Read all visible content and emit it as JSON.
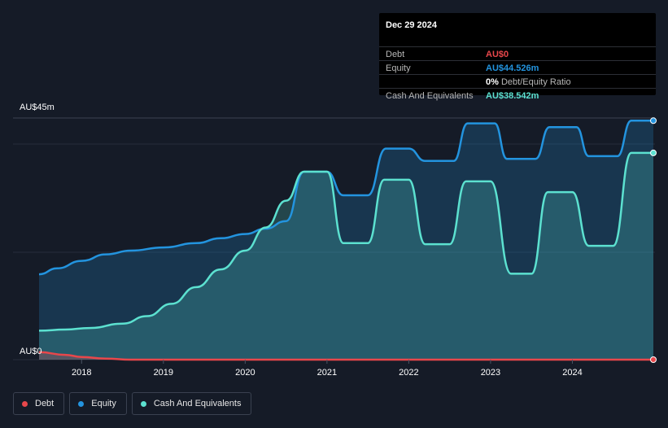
{
  "tooltip": {
    "date": "Dec 29 2024",
    "rows": [
      {
        "label": "Debt",
        "value": "AU$0",
        "color": "#e8474b"
      },
      {
        "label": "Equity",
        "value": "AU$44.526m",
        "color": "#2394df"
      },
      {
        "label": "",
        "value": "0%",
        "extra": "Debt/Equity Ratio",
        "color": "#ffffff"
      },
      {
        "label": "Cash And Equivalents",
        "value": "AU$38.542m",
        "color": "#5ce1d0"
      }
    ]
  },
  "legend": [
    {
      "label": "Debt",
      "color": "#e8474b"
    },
    {
      "label": "Equity",
      "color": "#2394df"
    },
    {
      "label": "Cash And Equivalents",
      "color": "#5ce1d0"
    }
  ],
  "chart_data": {
    "type": "area",
    "y_top_label": "AU$45m",
    "y_bottom_label": "AU$0",
    "ylim": [
      0,
      45
    ],
    "xlim": [
      2017.48,
      2024.99
    ],
    "x_ticks": [
      "2018",
      "2019",
      "2020",
      "2021",
      "2022",
      "2023",
      "2024"
    ],
    "x_tick_values": [
      2018,
      2019,
      2020,
      2021,
      2022,
      2023,
      2024
    ],
    "grid": "horizontal",
    "legend_position": "bottom-left",
    "series": [
      {
        "name": "Equity",
        "color": "#2394df",
        "points": [
          [
            2017.48,
            15.9
          ],
          [
            2017.7,
            17.0
          ],
          [
            2018.0,
            18.4
          ],
          [
            2018.3,
            19.6
          ],
          [
            2018.6,
            20.3
          ],
          [
            2019.0,
            20.9
          ],
          [
            2019.4,
            21.7
          ],
          [
            2019.7,
            22.6
          ],
          [
            2020.0,
            23.4
          ],
          [
            2020.25,
            24.4
          ],
          [
            2020.5,
            25.8
          ],
          [
            2020.72,
            35.0
          ],
          [
            2021.0,
            35.0
          ],
          [
            2021.2,
            30.6
          ],
          [
            2021.5,
            30.6
          ],
          [
            2021.72,
            39.3
          ],
          [
            2022.0,
            39.3
          ],
          [
            2022.2,
            37.0
          ],
          [
            2022.55,
            37.0
          ],
          [
            2022.72,
            44.0
          ],
          [
            2023.05,
            44.0
          ],
          [
            2023.2,
            37.4
          ],
          [
            2023.55,
            37.4
          ],
          [
            2023.72,
            43.3
          ],
          [
            2024.05,
            43.3
          ],
          [
            2024.2,
            37.9
          ],
          [
            2024.55,
            37.9
          ],
          [
            2024.72,
            44.5
          ],
          [
            2024.99,
            44.5
          ]
        ]
      },
      {
        "name": "Cash And Equivalents",
        "color": "#5ce1d0",
        "points": [
          [
            2017.48,
            5.4
          ],
          [
            2017.8,
            5.6
          ],
          [
            2018.1,
            5.9
          ],
          [
            2018.5,
            6.7
          ],
          [
            2018.8,
            8.1
          ],
          [
            2019.1,
            10.4
          ],
          [
            2019.4,
            13.5
          ],
          [
            2019.7,
            16.8
          ],
          [
            2020.0,
            20.3
          ],
          [
            2020.25,
            24.6
          ],
          [
            2020.5,
            29.6
          ],
          [
            2020.72,
            35.0
          ],
          [
            2021.0,
            35.0
          ],
          [
            2021.2,
            21.7
          ],
          [
            2021.5,
            21.7
          ],
          [
            2021.7,
            33.5
          ],
          [
            2022.0,
            33.5
          ],
          [
            2022.2,
            21.5
          ],
          [
            2022.5,
            21.5
          ],
          [
            2022.7,
            33.2
          ],
          [
            2023.0,
            33.2
          ],
          [
            2023.25,
            16.0
          ],
          [
            2023.5,
            16.0
          ],
          [
            2023.7,
            31.2
          ],
          [
            2024.0,
            31.2
          ],
          [
            2024.2,
            21.2
          ],
          [
            2024.5,
            21.2
          ],
          [
            2024.72,
            38.5
          ],
          [
            2024.99,
            38.5
          ]
        ]
      },
      {
        "name": "Debt",
        "color": "#e8474b",
        "points": [
          [
            2017.48,
            1.4
          ],
          [
            2017.8,
            0.9
          ],
          [
            2018.0,
            0.5
          ],
          [
            2018.3,
            0.2
          ],
          [
            2018.6,
            0.0
          ],
          [
            2024.99,
            0.0
          ]
        ]
      }
    ]
  }
}
